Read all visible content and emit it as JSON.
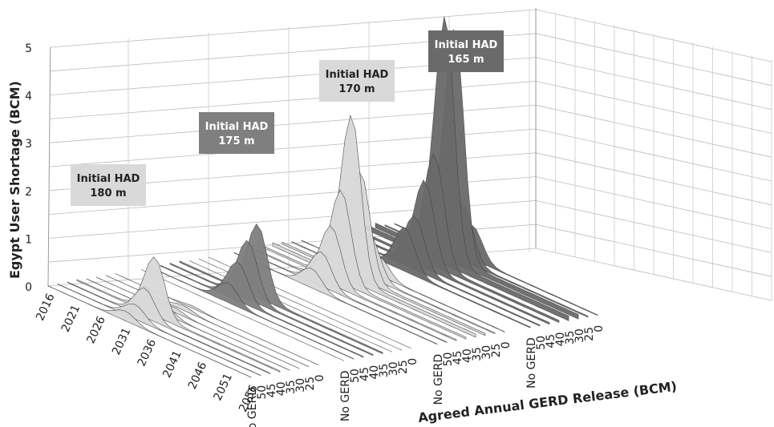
{
  "chart_data": {
    "type": "area",
    "ylabel": "Egypt User Shortage (BCM)",
    "xlabel": "Agreed Annual GERD Release (BCM)",
    "ylim": [
      0,
      5
    ],
    "yticks": [
      "0",
      "1",
      "2",
      "3",
      "4",
      "5"
    ],
    "year_ticks": [
      "2016",
      "2021",
      "2026",
      "2031",
      "2036",
      "2041",
      "2046",
      "2051",
      "2056"
    ],
    "release_labels": [
      "No GERD",
      "50",
      "45",
      "40",
      "35",
      "30",
      "25",
      "0"
    ],
    "groups": [
      {
        "label": "Initial HAD\n180 m",
        "color": "#d9d9d9",
        "peaks": [
          0.2,
          0.3,
          0.6,
          1.2,
          0.2,
          0.1,
          0.1,
          0.05
        ]
      },
      {
        "label": "Initial HAD\n175 m",
        "color": "#7f7f7f",
        "peaks": [
          0.0,
          0.4,
          0.8,
          1.2,
          1.5,
          0.0,
          0.0,
          0.0
        ]
      },
      {
        "label": "Initial HAD\n170 m",
        "color": "#d9d9d9",
        "peaks": [
          0.4,
          0.7,
          1.2,
          1.9,
          3.4,
          2.2,
          0.9,
          0.4
        ]
      },
      {
        "label": "Initial HAD\n165 m",
        "color": "#6a6a6a",
        "peaks": [
          0.9,
          1.1,
          1.8,
          2.3,
          5.1,
          4.8,
          1.2,
          0.7
        ]
      }
    ]
  }
}
